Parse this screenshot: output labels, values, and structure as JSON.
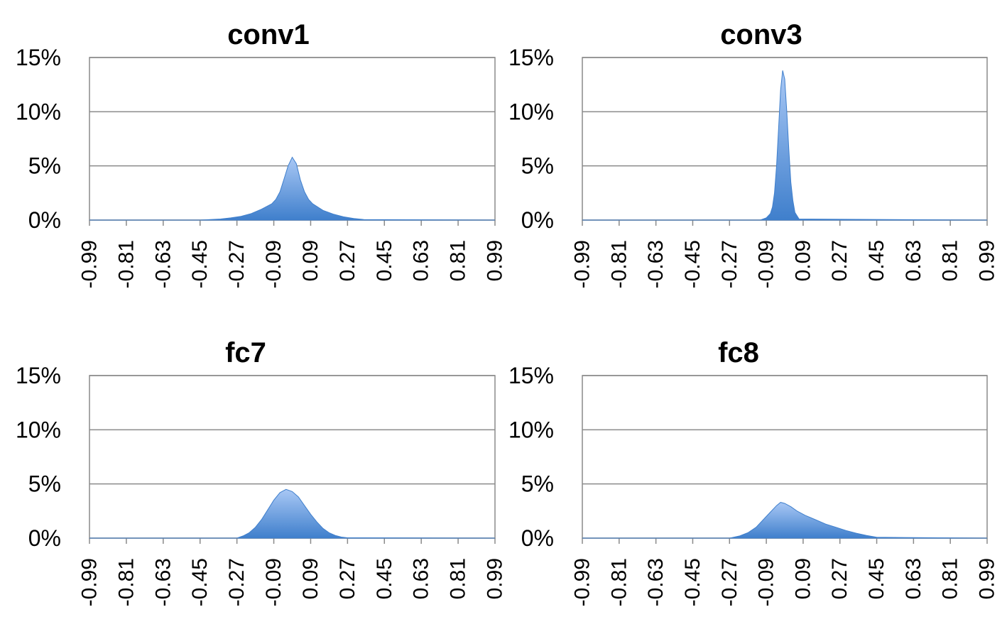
{
  "chart_data": [
    {
      "type": "area",
      "title": "conv1",
      "categories": [
        "-0.99",
        "-0.81",
        "-0.63",
        "-0.45",
        "-0.27",
        "-0.09",
        "0.09",
        "0.27",
        "0.45",
        "0.63",
        "0.81",
        "0.99"
      ],
      "ylim": [
        0,
        15
      ],
      "yticks": [
        "0%",
        "5%",
        "10%",
        "15%"
      ],
      "grid": true,
      "series": [
        {
          "x": [
            -0.99,
            -0.45,
            -0.4,
            -0.35,
            -0.3,
            -0.25,
            -0.2,
            -0.15,
            -0.1,
            -0.08,
            -0.06,
            -0.04,
            -0.02,
            0.0,
            0.02,
            0.04,
            0.06,
            0.08,
            0.1,
            0.15,
            0.2,
            0.25,
            0.3,
            0.35,
            0.99
          ],
          "values": [
            0,
            0,
            0.05,
            0.1,
            0.2,
            0.35,
            0.6,
            1.0,
            1.5,
            1.9,
            2.6,
            3.8,
            5.0,
            5.8,
            5.2,
            3.7,
            2.6,
            1.9,
            1.5,
            0.9,
            0.55,
            0.3,
            0.15,
            0.05,
            0
          ]
        }
      ]
    },
    {
      "type": "area",
      "title": "conv3",
      "categories": [
        "-0.99",
        "-0.81",
        "-0.63",
        "-0.45",
        "-0.27",
        "-0.09",
        "0.09",
        "0.27",
        "0.45",
        "0.63",
        "0.81",
        "0.99"
      ],
      "ylim": [
        0,
        15
      ],
      "yticks": [
        "0%",
        "5%",
        "10%",
        "15%"
      ],
      "grid": true,
      "series": [
        {
          "x": [
            -0.99,
            -0.12,
            -0.09,
            -0.07,
            -0.06,
            -0.05,
            -0.04,
            -0.03,
            -0.02,
            -0.01,
            0.0,
            0.01,
            0.02,
            0.03,
            0.04,
            0.05,
            0.07,
            0.99
          ],
          "values": [
            0,
            0,
            0.2,
            0.6,
            1.2,
            2.5,
            5.0,
            8.5,
            12.0,
            13.8,
            13.0,
            10.0,
            6.5,
            3.5,
            1.8,
            0.7,
            0.1,
            0
          ]
        }
      ]
    },
    {
      "type": "area",
      "title": "fc7",
      "categories": [
        "-0.99",
        "-0.81",
        "-0.63",
        "-0.45",
        "-0.27",
        "-0.09",
        "0.09",
        "0.27",
        "0.45",
        "0.63",
        "0.81",
        "0.99"
      ],
      "ylim": [
        0,
        15
      ],
      "yticks": [
        "0%",
        "5%",
        "10%",
        "15%"
      ],
      "grid": true,
      "series": [
        {
          "x": [
            -0.99,
            -0.27,
            -0.24,
            -0.21,
            -0.18,
            -0.15,
            -0.12,
            -0.09,
            -0.06,
            -0.03,
            0.0,
            0.03,
            0.06,
            0.09,
            0.12,
            0.15,
            0.18,
            0.21,
            0.24,
            0.27,
            0.99
          ],
          "values": [
            0,
            0,
            0.2,
            0.5,
            1.0,
            1.7,
            2.6,
            3.5,
            4.2,
            4.5,
            4.3,
            3.8,
            3.0,
            2.2,
            1.5,
            0.9,
            0.5,
            0.25,
            0.1,
            0.03,
            0
          ]
        }
      ]
    },
    {
      "type": "area",
      "title": "fc8",
      "categories": [
        "-0.99",
        "-0.81",
        "-0.63",
        "-0.45",
        "-0.27",
        "-0.09",
        "0.09",
        "0.27",
        "0.45",
        "0.63",
        "0.81",
        "0.99"
      ],
      "ylim": [
        0,
        15
      ],
      "yticks": [
        "0%",
        "5%",
        "10%",
        "15%"
      ],
      "grid": true,
      "series": [
        {
          "x": [
            -0.99,
            -0.27,
            -0.22,
            -0.18,
            -0.14,
            -0.1,
            -0.07,
            -0.04,
            -0.02,
            0.0,
            0.03,
            0.06,
            0.1,
            0.15,
            0.2,
            0.25,
            0.3,
            0.35,
            0.4,
            0.45,
            0.99
          ],
          "values": [
            0,
            0,
            0.2,
            0.5,
            1.0,
            1.8,
            2.4,
            3.0,
            3.3,
            3.2,
            2.9,
            2.5,
            2.1,
            1.7,
            1.3,
            1.0,
            0.7,
            0.45,
            0.25,
            0.08,
            0
          ]
        }
      ]
    }
  ],
  "colors": {
    "fill_top": "#a9c8f5",
    "fill_bottom": "#3f7fcc",
    "grid": "#8a8a8a"
  }
}
